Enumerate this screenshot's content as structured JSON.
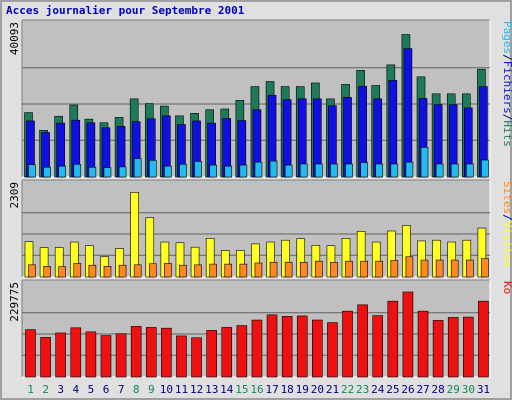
{
  "title": "Acces journalier pour Septembre 2001",
  "colors": {
    "background": "#e0e0e0",
    "plot_background": "#c0c0c0",
    "gridline": "#606060",
    "hits": "#1e7b5a",
    "files": "#1010e0",
    "pages": "#22bbee",
    "visits": "#ffff22",
    "sites": "#ff8822",
    "kbytes": "#ee1111",
    "weekend_day_label": "#118855",
    "weekday_day_label": "#000080"
  },
  "chart_data": [
    {
      "type": "bar",
      "name": "hits-files-pages",
      "categories": [
        "1",
        "2",
        "3",
        "4",
        "5",
        "6",
        "7",
        "8",
        "9",
        "10",
        "11",
        "12",
        "13",
        "14",
        "15",
        "16",
        "17",
        "18",
        "19",
        "20",
        "21",
        "22",
        "23",
        "24",
        "25",
        "26",
        "27",
        "28",
        "29",
        "30",
        "31"
      ],
      "y_tick_label": "40093",
      "ylim": [
        0,
        40093
      ],
      "side_labels": [
        {
          "text": "Pages",
          "color": "#22bbee"
        },
        {
          "text": "/",
          "color": "#000080"
        },
        {
          "text": "Fichiers",
          "color": "#1010e0"
        },
        {
          "text": "/",
          "color": "#000080"
        },
        {
          "text": "Hits",
          "color": "#1e7b5a"
        }
      ],
      "series": [
        {
          "name": "Hits",
          "color": "#1e7b5a",
          "values": [
            17800,
            12900,
            16800,
            19900,
            16000,
            15000,
            16500,
            21600,
            20300,
            19600,
            16900,
            17600,
            18600,
            18800,
            21200,
            25000,
            26400,
            25000,
            25000,
            26000,
            21600,
            25600,
            29500,
            25300,
            31000,
            39400,
            27700,
            23000,
            23000,
            23000,
            29800
          ]
        },
        {
          "name": "Fichiers",
          "color": "#1010e0",
          "values": [
            15500,
            12300,
            14900,
            15700,
            15000,
            13600,
            14000,
            15300,
            16100,
            16900,
            14500,
            15500,
            14900,
            16200,
            15600,
            18600,
            22600,
            21400,
            21600,
            21600,
            19700,
            22000,
            25100,
            21600,
            26700,
            35500,
            21700,
            20000,
            20000,
            19100,
            25000
          ]
        },
        {
          "name": "Pages",
          "color": "#22bbee",
          "values": [
            3400,
            2700,
            3000,
            3500,
            2700,
            2600,
            2800,
            5100,
            4600,
            3000,
            3500,
            4300,
            3300,
            3000,
            3300,
            4100,
            4400,
            3300,
            3600,
            3600,
            3600,
            3600,
            4000,
            3600,
            3600,
            4100,
            8200,
            3600,
            3600,
            3600,
            4700
          ]
        }
      ]
    },
    {
      "type": "bar",
      "name": "sites-visits",
      "categories": [
        "1",
        "2",
        "3",
        "4",
        "5",
        "6",
        "7",
        "8",
        "9",
        "10",
        "11",
        "12",
        "13",
        "14",
        "15",
        "16",
        "17",
        "18",
        "19",
        "20",
        "21",
        "22",
        "23",
        "24",
        "25",
        "26",
        "27",
        "28",
        "29",
        "30",
        "31"
      ],
      "y_tick_label": "2309",
      "ylim": [
        0,
        2309
      ],
      "side_labels": [
        {
          "text": "Sites",
          "color": "#ff8822"
        },
        {
          "text": "/",
          "color": "#000080"
        },
        {
          "text": "Visites",
          "color": "#ffff22"
        }
      ],
      "series": [
        {
          "name": "Visites",
          "color": "#ffff22",
          "values": [
            960,
            800,
            800,
            950,
            850,
            550,
            770,
            2300,
            1610,
            950,
            930,
            810,
            1050,
            720,
            720,
            900,
            950,
            1000,
            1040,
            860,
            850,
            1050,
            1240,
            950,
            1250,
            1400,
            980,
            1000,
            950,
            1000,
            1330
          ]
        },
        {
          "name": "Sites",
          "color": "#ff8822",
          "values": [
            330,
            290,
            280,
            370,
            320,
            290,
            320,
            330,
            360,
            370,
            320,
            330,
            350,
            350,
            350,
            380,
            400,
            400,
            400,
            430,
            400,
            430,
            430,
            430,
            450,
            550,
            460,
            460,
            460,
            460,
            500
          ]
        }
      ]
    },
    {
      "type": "bar",
      "name": "kbytes",
      "categories": [
        "1",
        "2",
        "3",
        "4",
        "5",
        "6",
        "7",
        "8",
        "9",
        "10",
        "11",
        "12",
        "13",
        "14",
        "15",
        "16",
        "17",
        "18",
        "19",
        "20",
        "21",
        "22",
        "23",
        "24",
        "25",
        "26",
        "27",
        "28",
        "29",
        "30",
        "31"
      ],
      "y_tick_label": "229775",
      "ylim": [
        0,
        229775
      ],
      "side_labels": [
        {
          "text": "Ko",
          "color": "#ee1111"
        }
      ],
      "series": [
        {
          "name": "Ko",
          "color": "#ee1111",
          "values": [
            128000,
            107000,
            119000,
            133000,
            122000,
            112000,
            117000,
            137000,
            134000,
            132000,
            111000,
            106000,
            126000,
            134000,
            139000,
            154000,
            168000,
            164000,
            165000,
            154000,
            147000,
            178000,
            195000,
            166000,
            205000,
            229775,
            178000,
            153000,
            161000,
            162000,
            205000
          ]
        }
      ]
    }
  ],
  "day_labels": [
    {
      "text": "1",
      "weekend": true
    },
    {
      "text": "2",
      "weekend": true
    },
    {
      "text": "3",
      "weekend": false
    },
    {
      "text": "4",
      "weekend": false
    },
    {
      "text": "5",
      "weekend": false
    },
    {
      "text": "6",
      "weekend": false
    },
    {
      "text": "7",
      "weekend": false
    },
    {
      "text": "8",
      "weekend": true
    },
    {
      "text": "9",
      "weekend": true
    },
    {
      "text": "10",
      "weekend": false
    },
    {
      "text": "11",
      "weekend": false
    },
    {
      "text": "12",
      "weekend": false
    },
    {
      "text": "13",
      "weekend": false
    },
    {
      "text": "14",
      "weekend": false
    },
    {
      "text": "15",
      "weekend": true
    },
    {
      "text": "16",
      "weekend": true
    },
    {
      "text": "17",
      "weekend": false
    },
    {
      "text": "18",
      "weekend": false
    },
    {
      "text": "19",
      "weekend": false
    },
    {
      "text": "20",
      "weekend": false
    },
    {
      "text": "21",
      "weekend": false
    },
    {
      "text": "22",
      "weekend": true
    },
    {
      "text": "23",
      "weekend": true
    },
    {
      "text": "24",
      "weekend": false
    },
    {
      "text": "25",
      "weekend": false
    },
    {
      "text": "26",
      "weekend": false
    },
    {
      "text": "27",
      "weekend": false
    },
    {
      "text": "28",
      "weekend": false
    },
    {
      "text": "29",
      "weekend": true
    },
    {
      "text": "30",
      "weekend": true
    },
    {
      "text": "31",
      "weekend": false
    }
  ]
}
